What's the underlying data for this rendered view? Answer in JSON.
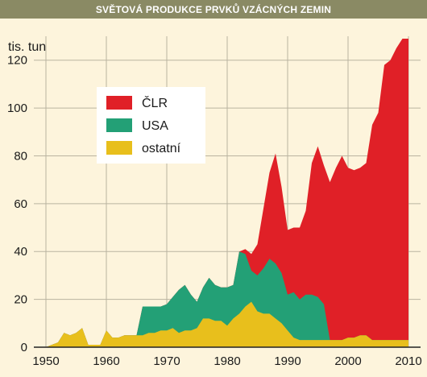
{
  "title": "SVĚTOVÁ PRODUKCE PRVKŮ VZÁCNÝCH ZEMIN",
  "chart_data": {
    "type": "area",
    "title": "SVĚTOVÁ PRODUKCE PRVKŮ VZÁCNÝCH ZEMIN",
    "ylabel": "tis. tun",
    "xlabel": "",
    "xlim": [
      1948,
      2012
    ],
    "ylim": [
      0,
      130
    ],
    "xticks": [
      "1950",
      "1960",
      "1970",
      "1980",
      "1990",
      "2000",
      "2010"
    ],
    "yticks": [
      "0",
      "20",
      "40",
      "60",
      "80",
      "100",
      "120"
    ],
    "stacked": true,
    "grid": true,
    "legend_position": "upper-left",
    "x": [
      1950,
      1951,
      1952,
      1953,
      1954,
      1955,
      1956,
      1957,
      1958,
      1959,
      1960,
      1961,
      1962,
      1963,
      1964,
      1965,
      1966,
      1967,
      1968,
      1969,
      1970,
      1971,
      1972,
      1973,
      1974,
      1975,
      1976,
      1977,
      1978,
      1979,
      1980,
      1981,
      1982,
      1983,
      1984,
      1985,
      1986,
      1987,
      1988,
      1989,
      1990,
      1991,
      1992,
      1993,
      1994,
      1995,
      1996,
      1997,
      1998,
      1999,
      2000,
      2001,
      2002,
      2003,
      2004,
      2005,
      2006,
      2007,
      2008,
      2009,
      2010
    ],
    "series": [
      {
        "name": "ostatní",
        "color": "#e8bf1c",
        "values": [
          0,
          1,
          2,
          6,
          5,
          6,
          8,
          1,
          1,
          1,
          7,
          4,
          4,
          5,
          5,
          5,
          5,
          6,
          6,
          7,
          7,
          8,
          6,
          7,
          7,
          8,
          12,
          12,
          11,
          11,
          9,
          12,
          14,
          17,
          19,
          15,
          14,
          14,
          12,
          10,
          7,
          4,
          3,
          3,
          3,
          3,
          3,
          3,
          3,
          3,
          4,
          4,
          5,
          5,
          3,
          3,
          3,
          3,
          3,
          3,
          3
        ]
      },
      {
        "name": "USA",
        "color": "#23a076",
        "values": [
          0,
          0,
          0,
          0,
          0,
          0,
          0,
          0,
          0,
          0,
          0,
          0,
          0,
          0,
          0,
          0,
          12,
          11,
          11,
          10,
          11,
          13,
          18,
          19,
          15,
          11,
          13,
          17,
          15,
          14,
          16,
          14,
          26,
          22,
          13,
          15,
          19,
          23,
          23,
          21,
          15,
          19,
          17,
          19,
          19,
          18,
          15,
          0,
          0,
          0,
          0,
          0,
          0,
          0,
          0,
          0,
          0,
          0,
          0,
          0,
          0
        ]
      },
      {
        "name": "ČLR",
        "color": "#e02027",
        "values": [
          0,
          0,
          0,
          0,
          0,
          0,
          0,
          0,
          0,
          0,
          0,
          0,
          0,
          0,
          0,
          0,
          0,
          0,
          0,
          0,
          0,
          0,
          0,
          0,
          0,
          0,
          0,
          0,
          0,
          0,
          0,
          0,
          0,
          2,
          7,
          13,
          25,
          36,
          46,
          36,
          27,
          27,
          30,
          35,
          55,
          63,
          58,
          66,
          72,
          77,
          71,
          70,
          70,
          72,
          90,
          95,
          115,
          117,
          122,
          126,
          126
        ]
      }
    ]
  }
}
